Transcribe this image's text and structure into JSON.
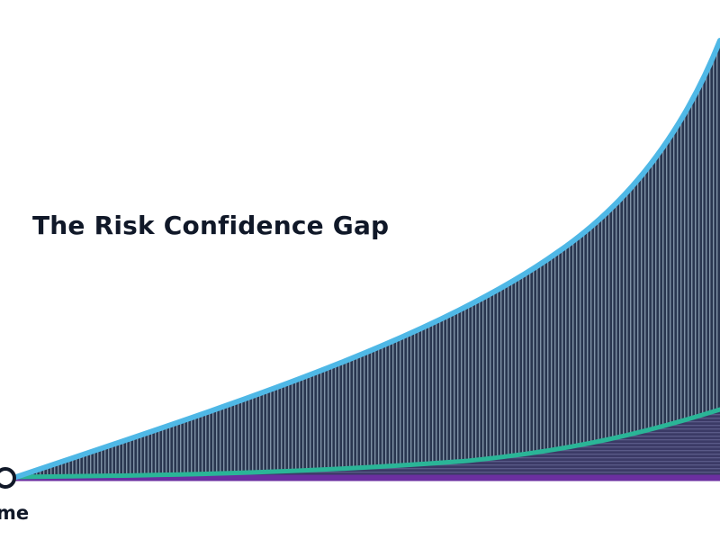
{
  "title": "The Risk Confidence Gap",
  "axis_label": "me",
  "colors": {
    "background": "#ffffff",
    "title_text": "#101828",
    "risk_curve": "#4fb8e6",
    "confidence_curve": "#2ab597",
    "baseline": "#6b2fa0",
    "gap_fill_dark": "#293650",
    "gap_fill_stripe": "#7f92a6",
    "lower_fill": "#3b3a66",
    "lower_stripe": "#5a5a88",
    "origin_marker_stroke": "#101828"
  }
}
